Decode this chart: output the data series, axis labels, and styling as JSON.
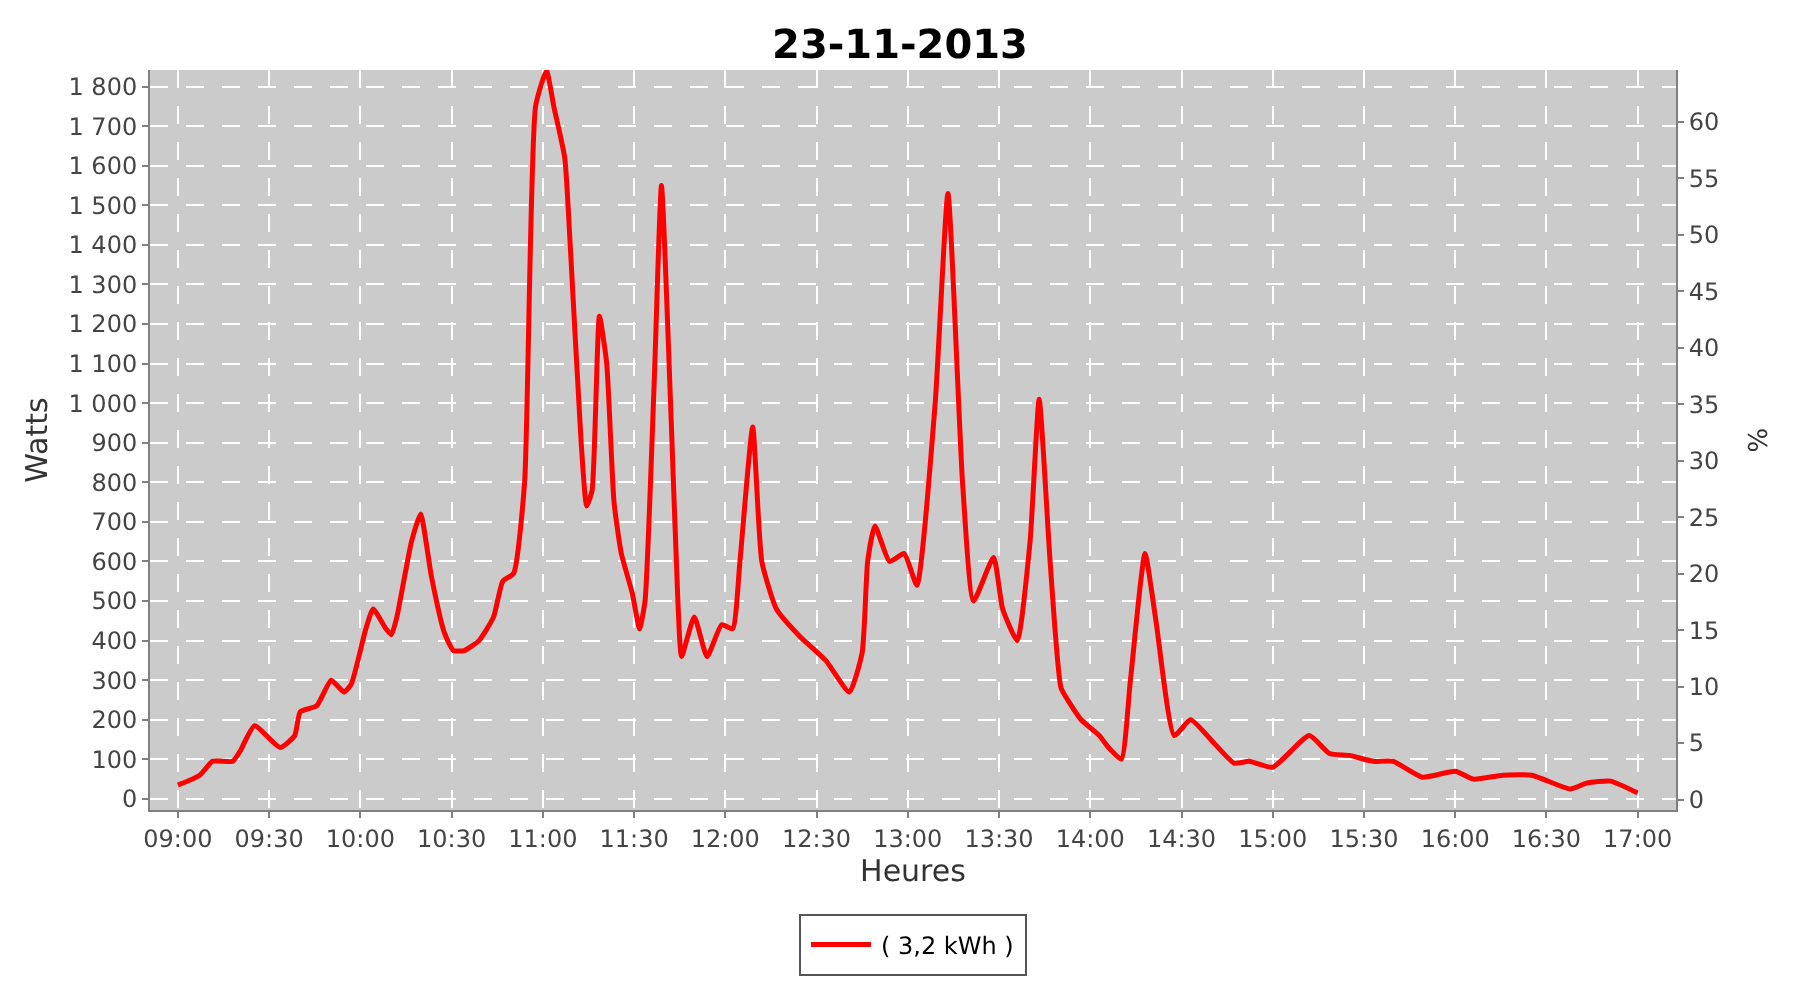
{
  "chart_data": {
    "type": "line",
    "title": "23-11-2013",
    "xlabel": "Heures",
    "ylabel": "Watts",
    "y2label": "%",
    "x": [
      9.0,
      9.12,
      9.19,
      9.3,
      9.34,
      9.42,
      9.56,
      9.64,
      9.67,
      9.76,
      9.84,
      9.91,
      9.95,
      10.03,
      10.07,
      10.14,
      10.17,
      10.2,
      10.28,
      10.33,
      10.39,
      10.46,
      10.51,
      10.57,
      10.65,
      10.73,
      10.78,
      10.84,
      10.9,
      10.96,
      11.02,
      11.06,
      11.12,
      11.15,
      11.21,
      11.24,
      11.27,
      11.31,
      11.35,
      11.39,
      11.43,
      11.49,
      11.53,
      11.56,
      11.61,
      11.65,
      11.7,
      11.74,
      11.76,
      11.83,
      11.9,
      11.98,
      12.04,
      12.08,
      12.15,
      12.2,
      12.28,
      12.41,
      12.55,
      12.68,
      12.75,
      12.78,
      12.82,
      12.9,
      12.98,
      13.05,
      13.15,
      13.22,
      13.3,
      13.36,
      13.47,
      13.52,
      13.6,
      13.67,
      13.72,
      13.78,
      13.84,
      13.89,
      13.95,
      14.05,
      14.1,
      14.17,
      14.22,
      14.3,
      14.36,
      14.46,
      14.55,
      14.68,
      14.79,
      14.87,
      15.0,
      15.2,
      15.31,
      15.42,
      15.55,
      15.66,
      15.82,
      16.0,
      16.1,
      16.26,
      16.42,
      16.63,
      16.72,
      16.85,
      17.0
    ],
    "series": [
      {
        "name": "( 3,2 kWh )",
        "color": "#ff0000",
        "values": [
          35,
          60,
          95,
          95,
          120,
          185,
          130,
          160,
          220,
          235,
          300,
          270,
          290,
          430,
          480,
          430,
          415,
          460,
          650,
          720,
          560,
          420,
          375,
          375,
          400,
          460,
          550,
          570,
          800,
          1750,
          1840,
          1750,
          1620,
          1400,
          900,
          740,
          780,
          1220,
          1100,
          750,
          620,
          520,
          430,
          500,
          1050,
          1550,
          1000,
          500,
          360,
          460,
          360,
          440,
          430,
          600,
          940,
          600,
          480,
          410,
          350,
          270,
          370,
          600,
          690,
          600,
          620,
          540,
          1000,
          1530,
          800,
          500,
          610,
          480,
          400,
          650,
          1010,
          600,
          280,
          240,
          200,
          160,
          130,
          100,
          300,
          620,
          450,
          160,
          200,
          140,
          90,
          95,
          80,
          160,
          115,
          110,
          95,
          95,
          55,
          70,
          50,
          60,
          60,
          25,
          40,
          45,
          15
        ]
      }
    ],
    "xlim": [
      8.847,
      17.21
    ],
    "ylim": [
      -28,
      1842
    ],
    "y2lim": [
      -0.93,
      64.6
    ],
    "xticks": [
      {
        "value": 9,
        "label": "09:00"
      },
      {
        "value": 9.5,
        "label": "09:30"
      },
      {
        "value": 10,
        "label": "10:00"
      },
      {
        "value": 10.5,
        "label": "10:30"
      },
      {
        "value": 11,
        "label": "11:00"
      },
      {
        "value": 11.5,
        "label": "11:30"
      },
      {
        "value": 12,
        "label": "12:00"
      },
      {
        "value": 12.5,
        "label": "12:30"
      },
      {
        "value": 13,
        "label": "13:00"
      },
      {
        "value": 13.5,
        "label": "13:30"
      },
      {
        "value": 14,
        "label": "14:00"
      },
      {
        "value": 14.5,
        "label": "14:30"
      },
      {
        "value": 15,
        "label": "15:00"
      },
      {
        "value": 15.5,
        "label": "15:30"
      },
      {
        "value": 16,
        "label": "16:00"
      },
      {
        "value": 16.5,
        "label": "16:30"
      },
      {
        "value": 17,
        "label": "17:00"
      }
    ],
    "yticks": [
      0,
      100,
      200,
      300,
      400,
      500,
      600,
      700,
      800,
      900,
      {
        "value": 1000,
        "label": "1 000"
      },
      {
        "value": 1100,
        "label": "1 100"
      },
      {
        "value": 1200,
        "label": "1 200"
      },
      {
        "value": 1300,
        "label": "1 300"
      },
      {
        "value": 1400,
        "label": "1 400"
      },
      {
        "value": 1500,
        "label": "1 500"
      },
      {
        "value": 1600,
        "label": "1 600"
      },
      {
        "value": 1700,
        "label": "1 700"
      },
      {
        "value": 1800,
        "label": "1 800"
      }
    ],
    "y2ticks": [
      0,
      5,
      10,
      15,
      20,
      25,
      30,
      35,
      40,
      45,
      50,
      55,
      60
    ],
    "grid": true,
    "legend": "bottom",
    "marker": "none",
    "line_style": "solid"
  }
}
